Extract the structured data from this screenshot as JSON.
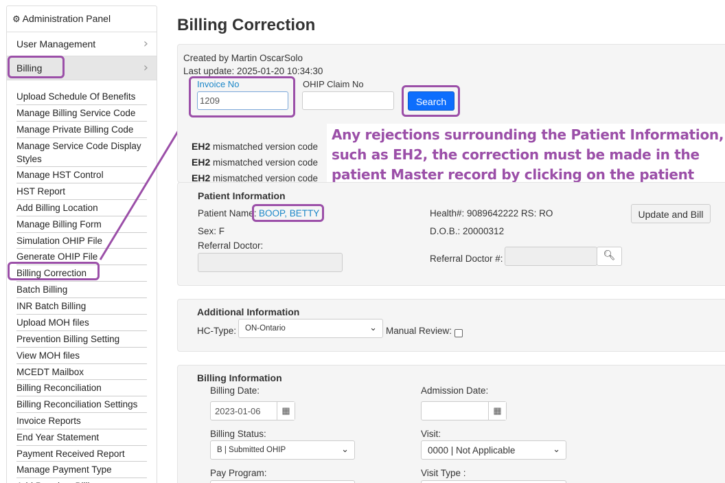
{
  "sidebar": {
    "header": "Administration Panel",
    "sections": [
      "User Management",
      "Billing"
    ],
    "items": [
      "Upload Schedule Of Benefits",
      "Manage Billing Service Code",
      "Manage Private Billing Code",
      "Manage Service Code Display Styles",
      "Manage HST Control",
      "HST Report",
      "Add Billing Location",
      "Manage Billing Form",
      "Simulation OHIP File",
      "Generate OHIP File",
      "Billing Correction",
      "Batch Billing",
      "INR Batch Billing",
      "Upload MOH files",
      "Prevention Billing Setting",
      "View MOH files",
      "MCEDT Mailbox",
      "Billing Reconciliation",
      "Billing Reconciliation Settings",
      "Invoice Reports",
      "End Year Statement",
      "Payment Received Report",
      "Manage Payment Type",
      "Add Premium Billing"
    ]
  },
  "page": {
    "title": "Billing Correction",
    "created_by": "Created by Martin OscarSolo",
    "last_update": "Last update: 2025-01-20 10:34:30"
  },
  "search": {
    "invoice_label": "Invoice No",
    "invoice_value": "1209",
    "ohip_label": "OHIP Claim No",
    "ohip_value": "",
    "button": "Search"
  },
  "errors": [
    {
      "code": "EH2",
      "message": "mismatched version code"
    },
    {
      "code": "EH2",
      "message": "mismatched version code"
    },
    {
      "code": "EH2",
      "message": "mismatched version code"
    }
  ],
  "annotation": "Any rejections surrounding the Patient Information, such as EH2, the correction must be made in the patient Master record by clicking on the patient name",
  "patient": {
    "heading": "Patient Information",
    "name_label": "Patient Name:",
    "name": "BOOP, BETTY",
    "health": "Health#: 9089642222 RS: RO",
    "update_button": "Update and Bill",
    "sex": "Sex: F",
    "dob": "D.O.B.: 20000312",
    "referral_label": "Referral Doctor:",
    "referral_no_label": "Referral Doctor #:"
  },
  "additional": {
    "heading": "Additional Information",
    "hc_type_label": "HC-Type:",
    "hc_type_value": "ON-Ontario",
    "manual_review_label": "Manual Review:"
  },
  "billing": {
    "heading": "Billing Information",
    "billing_date_label": "Billing Date:",
    "billing_date_value": "2023-01-06",
    "admission_date_label": "Admission Date:",
    "admission_date_value": "",
    "billing_status_label": "Billing Status:",
    "billing_status_value": "B | Submitted OHIP",
    "visit_label": "Visit:",
    "visit_value": "0000 | Not Applicable",
    "pay_program_label": "Pay Program:",
    "visit_type_label": "Visit Type :"
  },
  "colors": {
    "annotation": "#9b4fa8",
    "primary": "#0d6efd",
    "link": "#1a86c8"
  }
}
